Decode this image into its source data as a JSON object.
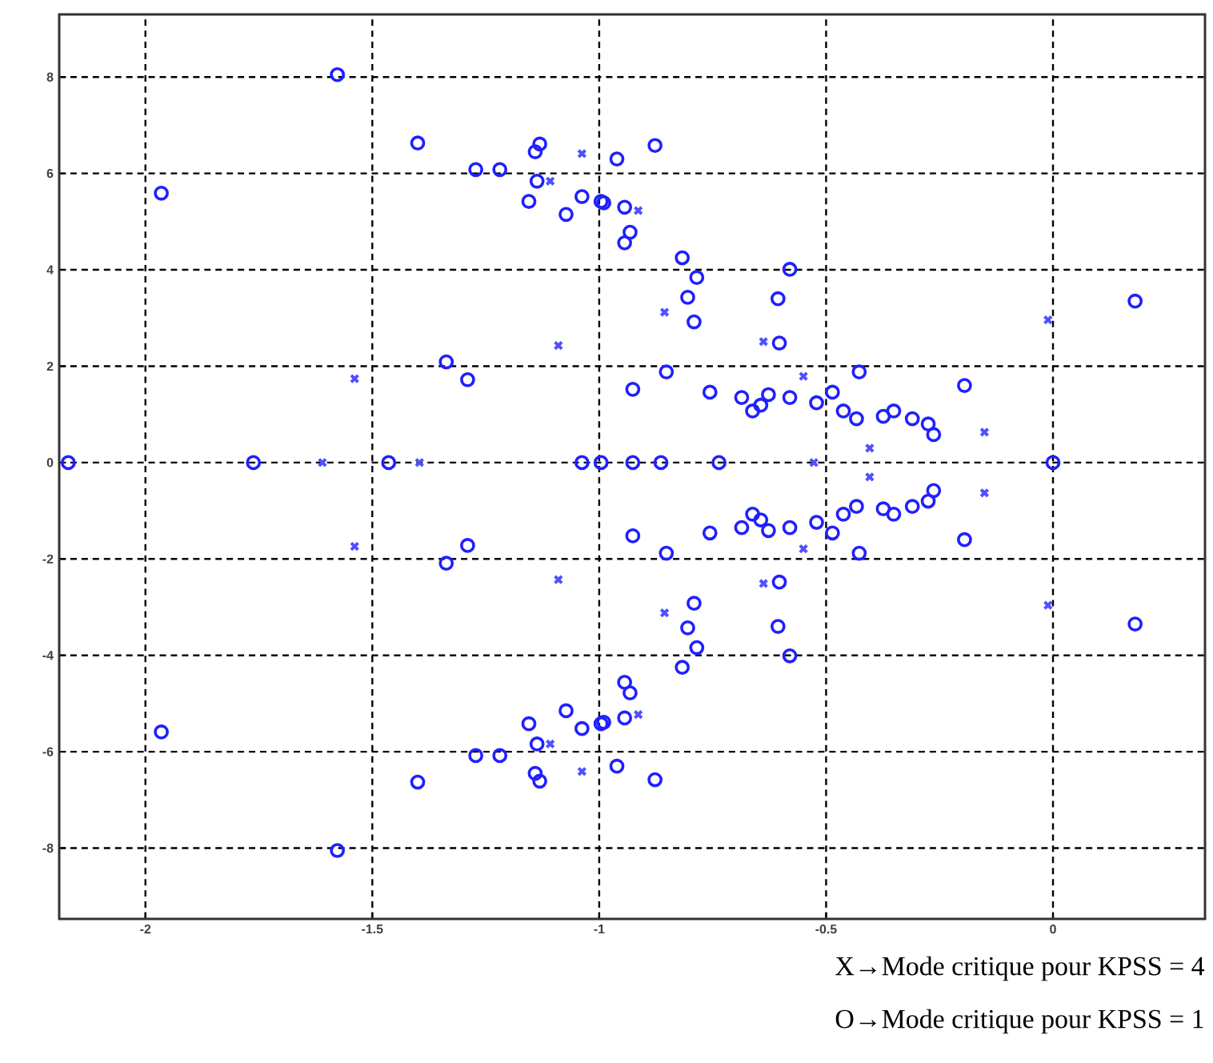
{
  "chart_data": {
    "type": "scatter",
    "xlim": [
      -2.19,
      0.335
    ],
    "ylim": [
      -9.47,
      9.3
    ],
    "xticks": [
      -2,
      -1.5,
      -1,
      -0.5,
      0
    ],
    "yticks": [
      -8,
      -6,
      -4,
      -2,
      0,
      2,
      4,
      6,
      8
    ],
    "grid": true,
    "annotations": [
      "X→Mode critique pour KPSS = 4",
      "O→Mode critique pour KPSS = 1"
    ],
    "series": [
      {
        "color": "#5050ff",
        "marker": "cross",
        "x": [
          -1.038,
          -1.108,
          -0.914,
          -0.856,
          -1.09,
          -1.539,
          -0.638,
          -0.55,
          -0.011,
          -0.151,
          -0.404,
          -1.038,
          -1.108,
          -0.914,
          -0.856,
          -1.09,
          -1.539,
          -0.638,
          -0.55,
          -0.011,
          -0.151,
          -0.404,
          -1.61,
          -1.396,
          -0.527
        ],
        "values": [
          6.41,
          5.84,
          5.23,
          3.12,
          2.43,
          1.74,
          2.51,
          1.79,
          2.96,
          0.63,
          0.3,
          -6.41,
          -5.84,
          -5.23,
          -3.12,
          -2.43,
          -1.74,
          -2.51,
          -1.79,
          -2.96,
          -0.63,
          -0.3,
          0,
          0,
          0
        ]
      },
      {
        "color": "#2020ff",
        "marker": "circle",
        "x": [
          -1.577,
          -1.965,
          -1.4,
          -1.272,
          -1.219,
          -1.131,
          -1.141,
          -1.137,
          -1.155,
          -1.073,
          -1.038,
          -0.99,
          -0.961,
          -0.877,
          -0.996,
          -0.944,
          -0.932,
          -0.944,
          -0.817,
          -0.785,
          -0.805,
          -0.791,
          -0.58,
          -0.606,
          -0.603,
          0.181,
          -0.427,
          -0.195,
          -0.852,
          -0.926,
          -1.337,
          -1.29,
          -0.756,
          -0.686,
          -0.644,
          -0.627,
          -0.58,
          -0.521,
          -0.486,
          -0.462,
          -0.433,
          -0.374,
          -0.351,
          -0.31,
          -0.275,
          -0.263,
          -0.662,
          -1.577,
          -1.965,
          -1.4,
          -1.272,
          -1.219,
          -1.131,
          -1.141,
          -1.137,
          -1.155,
          -1.073,
          -1.038,
          -0.99,
          -0.961,
          -0.877,
          -0.996,
          -0.944,
          -0.932,
          -0.944,
          -0.817,
          -0.785,
          -0.805,
          -0.791,
          -0.58,
          -0.606,
          -0.603,
          0.181,
          -0.427,
          -0.195,
          -0.852,
          -0.926,
          -1.337,
          -1.29,
          -0.756,
          -0.686,
          -0.644,
          -0.627,
          -0.58,
          -0.521,
          -0.486,
          -0.462,
          -0.433,
          -0.374,
          -0.351,
          -0.31,
          -0.275,
          -0.263,
          -0.662,
          -2.17,
          -1.762,
          -1.464,
          -1.038,
          -0.996,
          -0.926,
          -0.864,
          -0.736,
          0.0
        ],
        "values": [
          8.05,
          5.59,
          6.63,
          6.08,
          6.08,
          6.61,
          6.45,
          5.84,
          5.42,
          5.15,
          5.52,
          5.39,
          6.3,
          6.58,
          5.42,
          5.3,
          4.78,
          4.56,
          4.25,
          3.84,
          3.43,
          2.92,
          4.01,
          3.4,
          2.48,
          3.35,
          1.88,
          1.6,
          1.88,
          1.52,
          2.09,
          1.72,
          1.46,
          1.35,
          1.19,
          1.41,
          1.35,
          1.24,
          1.46,
          1.07,
          0.91,
          0.96,
          1.07,
          0.91,
          0.8,
          0.58,
          1.07,
          -8.05,
          -5.59,
          -6.63,
          -6.08,
          -6.08,
          -6.61,
          -6.45,
          -5.84,
          -5.42,
          -5.15,
          -5.52,
          -5.39,
          -6.3,
          -6.58,
          -5.42,
          -5.3,
          -4.78,
          -4.56,
          -4.25,
          -3.84,
          -3.43,
          -2.92,
          -4.01,
          -3.4,
          -2.48,
          -3.35,
          -1.88,
          -1.6,
          -1.88,
          -1.52,
          -2.09,
          -1.72,
          -1.46,
          -1.35,
          -1.19,
          -1.41,
          -1.35,
          -1.24,
          -1.46,
          -1.07,
          -0.91,
          -0.96,
          -1.07,
          -0.91,
          -0.8,
          -0.58,
          -1.07,
          0,
          0,
          0,
          0,
          0,
          0,
          0,
          0,
          0
        ]
      }
    ]
  }
}
